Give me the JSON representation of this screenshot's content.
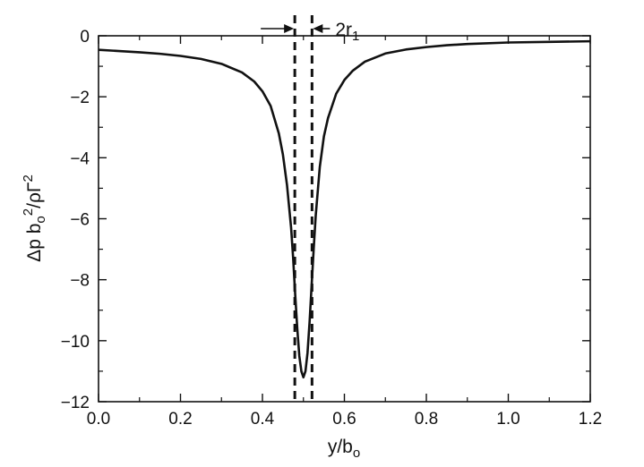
{
  "chart_data": {
    "type": "line",
    "xlabel": {
      "main": "y/b",
      "sub": "o"
    },
    "ylabel": {
      "p1": "Δp b",
      "sub1": "o",
      "sup1": "2",
      "p2": "/ρΓ",
      "sup2": "2"
    },
    "xlim": [
      0.0,
      1.2
    ],
    "ylim": [
      -12,
      0
    ],
    "xticks": [
      0.0,
      0.2,
      0.4,
      0.6,
      0.8,
      1.0,
      1.2
    ],
    "xtick_labels": [
      "0.0",
      "0.2",
      "0.4",
      "0.6",
      "0.8",
      "1.0",
      "1.2"
    ],
    "yticks": [
      0,
      -2,
      -4,
      -6,
      -8,
      -10,
      -12
    ],
    "ytick_labels": [
      "0",
      "−2",
      "−4",
      "−6",
      "−8",
      "−10",
      "−12"
    ],
    "grid": false,
    "series": [
      {
        "style": "solid",
        "x": [
          0.0,
          0.05,
          0.1,
          0.15,
          0.2,
          0.25,
          0.3,
          0.35,
          0.38,
          0.4,
          0.42,
          0.44,
          0.45,
          0.46,
          0.47,
          0.475,
          0.48,
          0.485,
          0.49,
          0.495,
          0.5,
          0.505,
          0.51,
          0.515,
          0.52,
          0.525,
          0.53,
          0.54,
          0.55,
          0.56,
          0.58,
          0.6,
          0.62,
          0.65,
          0.7,
          0.75,
          0.8,
          0.85,
          0.9,
          1.0,
          1.1,
          1.2
        ],
        "y": [
          -0.46,
          -0.5,
          -0.54,
          -0.59,
          -0.66,
          -0.76,
          -0.92,
          -1.2,
          -1.5,
          -1.82,
          -2.3,
          -3.2,
          -3.9,
          -4.9,
          -6.3,
          -7.3,
          -8.5,
          -9.6,
          -10.5,
          -11.0,
          -11.2,
          -11.0,
          -10.4,
          -9.4,
          -8.2,
          -7.0,
          -5.9,
          -4.3,
          -3.3,
          -2.7,
          -1.9,
          -1.45,
          -1.15,
          -0.85,
          -0.58,
          -0.45,
          -0.37,
          -0.31,
          -0.27,
          -0.22,
          -0.2,
          -0.18
        ]
      }
    ],
    "annotations": {
      "core_lines_x": [
        0.479,
        0.521
      ],
      "core_label": {
        "main": "2r",
        "sub": "1"
      }
    }
  }
}
